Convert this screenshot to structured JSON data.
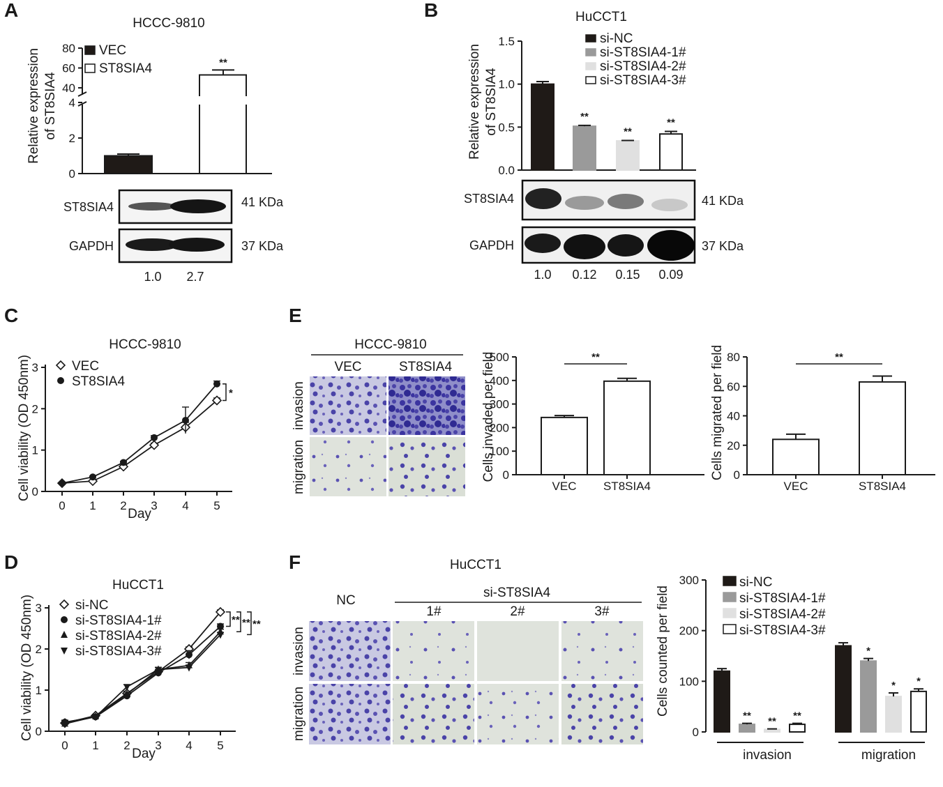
{
  "panel_labels": [
    "A",
    "B",
    "C",
    "D",
    "E",
    "F"
  ],
  "colors": {
    "black": "#1f1a17",
    "dark_gray": "#9a9a9a",
    "light_gray": "#e0e0e0",
    "white": "#ffffff",
    "stain": "#4a43a8",
    "field_bg": "#dfe3dc"
  },
  "blots": {
    "A": {
      "bands": [
        {
          "name": "ST8SIA4",
          "kda": "41 KDa"
        },
        {
          "name": "GAPDH",
          "kda": "37 KDa"
        }
      ],
      "quant": [
        "1.0",
        "2.7"
      ]
    },
    "B": {
      "bands": [
        {
          "name": "ST8SIA4",
          "kda": "41 KDa"
        },
        {
          "name": "GAPDH",
          "kda": "37 KDa"
        }
      ],
      "quant": [
        "1.0",
        "0.12",
        "0.15",
        "0.09"
      ]
    }
  },
  "images": {
    "E": {
      "title": "HCCC-9810",
      "cols": [
        "VEC",
        "ST8SIA4"
      ],
      "rows": [
        "invasion",
        "migration"
      ]
    },
    "F": {
      "title": "HuCCT1",
      "nc": "NC",
      "group": "si-ST8SIA4",
      "cols": [
        "1#",
        "2#",
        "3#"
      ],
      "rows": [
        "invasion",
        "migration"
      ]
    }
  },
  "chart_data": [
    {
      "id": "A",
      "type": "bar",
      "title": "HCCC-9810",
      "ylabel": [
        "Relative expression",
        "of ST8SIA4"
      ],
      "series": [
        {
          "name": "VEC",
          "value": 1.0,
          "err": 0.1
        },
        {
          "name": "ST8SIA4",
          "value": 53,
          "err": 5
        }
      ],
      "axis": {
        "lower": [
          0,
          4
        ],
        "upper": [
          40,
          80
        ],
        "lower_ticks": [
          "0",
          "2",
          "4"
        ],
        "upper_ticks": [
          "40",
          "60",
          "80"
        ]
      },
      "annotations": [
        "**"
      ]
    },
    {
      "id": "B",
      "type": "bar",
      "title": "HuCCT1",
      "ylabel": [
        "Relative expression",
        "of ST8SIA4"
      ],
      "ylim": [
        0,
        1.5
      ],
      "yticks": [
        "0.0",
        "0.5",
        "1.0",
        "1.5"
      ],
      "series": [
        {
          "name": "si-NC",
          "value": 1.0,
          "err": 0.03
        },
        {
          "name": "si-ST8SIA4-1#",
          "value": 0.51,
          "err": 0.01
        },
        {
          "name": "si-ST8SIA4-2#",
          "value": 0.34,
          "err": 0.005
        },
        {
          "name": "si-ST8SIA4-3#",
          "value": 0.42,
          "err": 0.03
        }
      ],
      "annotations": [
        "**",
        "**",
        "**"
      ]
    },
    {
      "id": "C",
      "type": "line",
      "title": "HCCC-9810",
      "xlabel": "Day",
      "ylabel": "Cell viability (OD 450nm)",
      "x": [
        0,
        1,
        2,
        3,
        4,
        5
      ],
      "xticks": [
        "0",
        "1",
        "2",
        "3",
        "4",
        "5"
      ],
      "ylim": [
        0,
        3
      ],
      "yticks": [
        "0",
        "1",
        "2",
        "3"
      ],
      "series": [
        {
          "name": "VEC",
          "marker": "diamond-open",
          "values": [
            0.2,
            0.25,
            0.6,
            1.12,
            1.55,
            2.2
          ],
          "err": [
            0.02,
            0.02,
            0.03,
            0.05,
            0.12,
            0.06
          ]
        },
        {
          "name": "ST8SIA4",
          "marker": "circle-filled",
          "values": [
            0.2,
            0.35,
            0.7,
            1.3,
            1.72,
            2.6
          ],
          "err": [
            0.02,
            0.02,
            0.03,
            0.05,
            0.32,
            0.07
          ]
        }
      ],
      "annotations": [
        "*"
      ]
    },
    {
      "id": "D",
      "type": "line",
      "title": "HuCCT1",
      "xlabel": "Day",
      "ylabel": "Cell viability (OD 450nm)",
      "x": [
        0,
        1,
        2,
        3,
        4,
        5
      ],
      "xticks": [
        "0",
        "1",
        "2",
        "3",
        "4",
        "5"
      ],
      "ylim": [
        0,
        3
      ],
      "yticks": [
        "0",
        "1",
        "2",
        "3"
      ],
      "series": [
        {
          "name": "si-NC",
          "marker": "diamond-open",
          "values": [
            0.2,
            0.38,
            0.92,
            1.45,
            2.0,
            2.9
          ],
          "err": [
            0.05,
            0.03,
            0.05,
            0.05,
            0.05,
            0.05
          ]
        },
        {
          "name": "si-ST8SIA4-1#",
          "marker": "circle-filled",
          "values": [
            0.22,
            0.35,
            0.86,
            1.42,
            1.86,
            2.55
          ],
          "err": [
            0.05,
            0.03,
            0.05,
            0.05,
            0.1,
            0.06
          ]
        },
        {
          "name": "si-ST8SIA4-2#",
          "marker": "triangle-up",
          "values": [
            0.18,
            0.36,
            0.9,
            1.5,
            1.6,
            2.42
          ],
          "err": [
            0.05,
            0.03,
            0.05,
            0.05,
            0.07,
            0.06
          ]
        },
        {
          "name": "si-ST8SIA4-3#",
          "marker": "triangle-down",
          "values": [
            0.2,
            0.35,
            1.08,
            1.5,
            1.55,
            2.35
          ],
          "err": [
            0.05,
            0.03,
            0.05,
            0.05,
            0.06,
            0.05
          ]
        }
      ],
      "annotations": [
        "**",
        "**",
        "**"
      ]
    },
    {
      "id": "E1",
      "type": "bar",
      "ylabel": "Cells invaded per field",
      "categories": [
        "VEC",
        "ST8SIA4"
      ],
      "values": [
        243,
        397
      ],
      "err": [
        8,
        12
      ],
      "ylim": [
        0,
        500
      ],
      "yticks": [
        "0",
        "100",
        "200",
        "300",
        "400",
        "500"
      ],
      "annotations": [
        "**"
      ]
    },
    {
      "id": "E2",
      "type": "bar",
      "ylabel": "Cells migrated per field",
      "categories": [
        "VEC",
        "ST8SIA4"
      ],
      "values": [
        24,
        63
      ],
      "err": [
        3.5,
        4
      ],
      "ylim": [
        0,
        80
      ],
      "yticks": [
        "0",
        "20",
        "40",
        "60",
        "80"
      ],
      "annotations": [
        "**"
      ]
    },
    {
      "id": "F",
      "type": "bar",
      "ylabel": "Cells counted per field",
      "categories": [
        "invasion",
        "migration"
      ],
      "ylim": [
        0,
        300
      ],
      "yticks": [
        "0",
        "100",
        "200",
        "300"
      ],
      "series": [
        {
          "name": "si-NC",
          "values": [
            120,
            170
          ],
          "err": [
            5,
            6
          ]
        },
        {
          "name": "si-ST8SIA4-1#",
          "values": [
            15,
            140
          ],
          "err": [
            2,
            5
          ]
        },
        {
          "name": "si-ST8SIA4-2#",
          "values": [
            5,
            70
          ],
          "err": [
            1,
            7
          ]
        },
        {
          "name": "si-ST8SIA4-3#",
          "values": [
            15,
            80
          ],
          "err": [
            2,
            5
          ]
        }
      ],
      "annotations": [
        [
          "",
          "**",
          "**",
          "**"
        ],
        [
          "",
          "*",
          "*",
          "*"
        ]
      ]
    }
  ]
}
